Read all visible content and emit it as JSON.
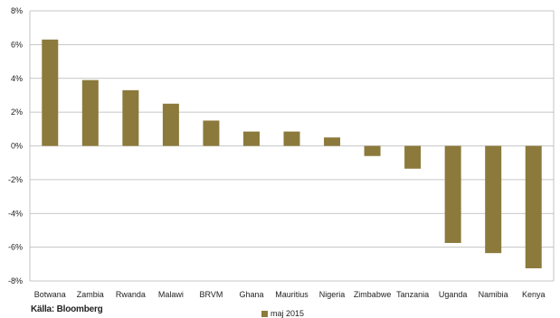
{
  "chart_data": {
    "type": "bar",
    "categories": [
      "Botwana",
      "Zambia",
      "Rwanda",
      "Malawi",
      "BRVM",
      "Ghana",
      "Mauritius",
      "Nigeria",
      "Zimbabwe",
      "Tanzania",
      "Uganda",
      "Namibia",
      "Kenya"
    ],
    "series": [
      {
        "name": "maj 2015",
        "values": [
          6.3,
          3.9,
          3.3,
          2.5,
          1.5,
          0.85,
          0.85,
          0.5,
          -0.6,
          -1.35,
          -5.75,
          -6.35,
          -7.25
        ]
      }
    ],
    "ylim": [
      -8,
      8
    ],
    "yticks": [
      8,
      6,
      4,
      2,
      0,
      -2,
      -4,
      -6,
      -8
    ],
    "ytick_labels": [
      "8%",
      "6%",
      "4%",
      "2%",
      "0%",
      "-2%",
      "-4%",
      "-6%",
      "-8%"
    ],
    "grid": true,
    "legend_position": "bottom",
    "bar_color": "#8c7a3c",
    "grid_color": "#b5b5b5"
  },
  "source_label": "Källa: Bloomberg"
}
